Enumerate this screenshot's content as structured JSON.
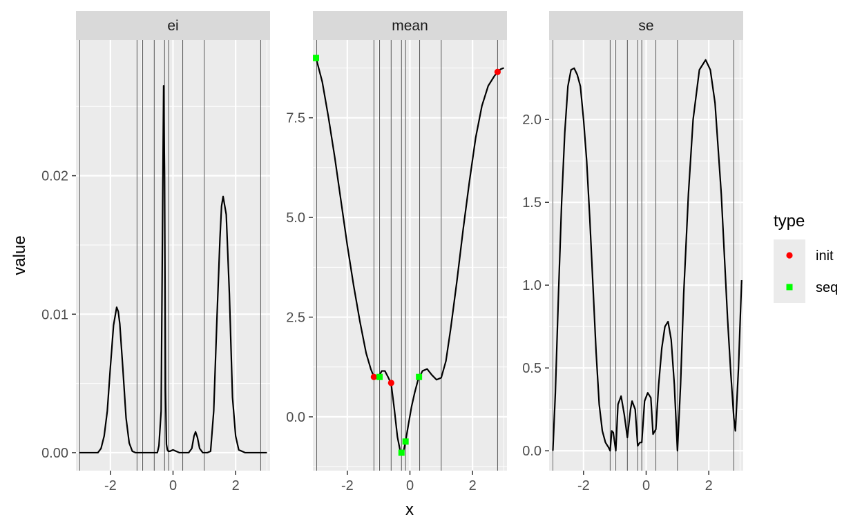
{
  "chart_data": {
    "type": "line",
    "xlabel": "x",
    "ylabel": "value",
    "facets": [
      {
        "name": "ei",
        "xlim": [
          -3.1,
          3.1
        ],
        "ylim": [
          -0.0013,
          0.0298
        ],
        "x_ticks": [
          -2,
          0,
          2
        ],
        "y_ticks": [
          0.0,
          0.01,
          0.02
        ],
        "y_tick_labels": [
          "0.00",
          "0.01",
          "0.02"
        ],
        "vlines": [
          -2.98,
          -1.15,
          -0.97,
          -0.6,
          -0.27,
          -0.14,
          0.31,
          1.0,
          2.8
        ],
        "curve": {
          "x": [
            -3.0,
            -2.4,
            -2.3,
            -2.2,
            -2.1,
            -2.0,
            -1.9,
            -1.8,
            -1.75,
            -1.7,
            -1.6,
            -1.5,
            -1.4,
            -1.3,
            -1.2,
            -1.0,
            -0.8,
            -0.5,
            -0.45,
            -0.38,
            -0.33,
            -0.3,
            -0.27,
            -0.24,
            -0.21,
            -0.18,
            -0.15,
            -0.1,
            0.0,
            0.2,
            0.5,
            0.6,
            0.67,
            0.72,
            0.78,
            0.85,
            0.95,
            1.1,
            1.2,
            1.3,
            1.4,
            1.5,
            1.55,
            1.6,
            1.7,
            1.8,
            1.9,
            2.0,
            2.1,
            2.3,
            2.6,
            3.0
          ],
          "y": [
            0,
            0,
            0.0003,
            0.0012,
            0.003,
            0.0062,
            0.0092,
            0.0105,
            0.0102,
            0.0093,
            0.006,
            0.0025,
            0.0007,
            0.0001,
            0,
            0,
            0,
            0,
            0.0005,
            0.003,
            0.018,
            0.0265,
            0.02,
            0.0045,
            0.0006,
            0.0002,
            0.0001,
            0.0001,
            0.0002,
            0,
            0,
            0.0003,
            0.0012,
            0.0015,
            0.0011,
            0.0003,
            0,
            0,
            0.0001,
            0.003,
            0.0095,
            0.0155,
            0.0178,
            0.0185,
            0.0172,
            0.0115,
            0.004,
            0.0012,
            0.0002,
            0,
            0,
            0
          ]
        }
      },
      {
        "name": "mean",
        "xlim": [
          -3.1,
          3.1
        ],
        "ylim": [
          -1.35,
          9.45
        ],
        "x_ticks": [
          -2,
          0,
          2
        ],
        "y_ticks": [
          0.0,
          2.5,
          5.0,
          7.5
        ],
        "y_tick_labels": [
          "0.0",
          "2.5",
          "5.0",
          "7.5"
        ],
        "vlines": [
          -2.98,
          -1.15,
          -0.97,
          -0.6,
          -0.27,
          -0.14,
          0.31,
          1.0,
          2.8
        ],
        "curve": {
          "x": [
            -3.0,
            -2.8,
            -2.6,
            -2.4,
            -2.2,
            -2.0,
            -1.8,
            -1.6,
            -1.4,
            -1.25,
            -1.15,
            -1.05,
            -0.97,
            -0.9,
            -0.8,
            -0.7,
            -0.6,
            -0.5,
            -0.4,
            -0.3,
            -0.25,
            -0.2,
            -0.14,
            -0.05,
            0.05,
            0.15,
            0.25,
            0.31,
            0.4,
            0.55,
            0.7,
            0.85,
            1.0,
            1.15,
            1.3,
            1.5,
            1.7,
            1.9,
            2.1,
            2.3,
            2.5,
            2.7,
            2.8,
            2.9,
            3.0
          ],
          "y": [
            9.0,
            8.4,
            7.5,
            6.5,
            5.4,
            4.3,
            3.3,
            2.4,
            1.6,
            1.2,
            1.0,
            1.0,
            1.05,
            1.15,
            1.15,
            1.0,
            0.83,
            0.2,
            -0.5,
            -0.9,
            -0.95,
            -0.85,
            -0.62,
            -0.2,
            0.25,
            0.6,
            0.9,
            1.0,
            1.15,
            1.2,
            1.05,
            0.93,
            0.98,
            1.4,
            2.2,
            3.4,
            4.7,
            5.9,
            7.0,
            7.8,
            8.3,
            8.55,
            8.65,
            8.72,
            8.75
          ]
        },
        "points": [
          {
            "x": -3.0,
            "y": 9.0,
            "type": "seq"
          },
          {
            "x": -1.15,
            "y": 1.0,
            "type": "init"
          },
          {
            "x": -0.97,
            "y": 1.0,
            "type": "seq"
          },
          {
            "x": -0.6,
            "y": 0.85,
            "type": "init"
          },
          {
            "x": -0.27,
            "y": -0.9,
            "type": "seq"
          },
          {
            "x": -0.14,
            "y": -0.62,
            "type": "seq"
          },
          {
            "x": 0.29,
            "y": 1.0,
            "type": "seq"
          },
          {
            "x": 2.8,
            "y": 8.65,
            "type": "init"
          }
        ]
      },
      {
        "name": "se",
        "xlim": [
          -3.1,
          3.1
        ],
        "ylim": [
          -0.12,
          2.48
        ],
        "x_ticks": [
          -2,
          0,
          2
        ],
        "y_ticks": [
          0.0,
          0.5,
          1.0,
          1.5,
          2.0
        ],
        "y_tick_labels": [
          "0.0",
          "0.5",
          "1.0",
          "1.5",
          "2.0"
        ],
        "vlines": [
          -2.98,
          -1.15,
          -0.97,
          -0.6,
          -0.27,
          -0.14,
          0.31,
          1.0,
          2.8
        ],
        "curve": {
          "x": [
            -2.98,
            -2.9,
            -2.8,
            -2.7,
            -2.6,
            -2.5,
            -2.4,
            -2.3,
            -2.2,
            -2.1,
            -2.0,
            -1.9,
            -1.8,
            -1.7,
            -1.6,
            -1.5,
            -1.4,
            -1.3,
            -1.2,
            -1.15,
            -1.1,
            -1.05,
            -0.97,
            -0.9,
            -0.8,
            -0.7,
            -0.6,
            -0.5,
            -0.45,
            -0.35,
            -0.27,
            -0.2,
            -0.14,
            -0.05,
            0.05,
            0.15,
            0.22,
            0.31,
            0.4,
            0.5,
            0.6,
            0.7,
            0.8,
            0.9,
            1.0,
            1.1,
            1.2,
            1.35,
            1.5,
            1.7,
            1.9,
            2.05,
            2.2,
            2.4,
            2.6,
            2.7,
            2.8,
            2.85,
            2.95,
            3.05
          ],
          "y": [
            0.0,
            0.35,
            0.95,
            1.5,
            1.92,
            2.2,
            2.3,
            2.31,
            2.27,
            2.2,
            2.0,
            1.75,
            1.4,
            1.0,
            0.6,
            0.28,
            0.12,
            0.05,
            0.02,
            0.0,
            0.12,
            0.11,
            0.0,
            0.28,
            0.33,
            0.22,
            0.08,
            0.25,
            0.3,
            0.25,
            0.03,
            0.05,
            0.05,
            0.3,
            0.35,
            0.32,
            0.1,
            0.13,
            0.4,
            0.62,
            0.75,
            0.78,
            0.67,
            0.4,
            0.0,
            0.4,
            0.95,
            1.55,
            2.0,
            2.3,
            2.36,
            2.3,
            2.1,
            1.55,
            0.8,
            0.48,
            0.2,
            0.12,
            0.5,
            1.03
          ]
        }
      }
    ],
    "legend": {
      "title": "type",
      "position": "right",
      "entries": [
        {
          "label": "init",
          "shape": "circle",
          "color": "#ff0000"
        },
        {
          "label": "seq",
          "shape": "square",
          "color": "#00ff00"
        }
      ]
    }
  },
  "colors": {
    "panel_background": "#ebebeb",
    "strip_background": "#d9d9d9",
    "grid_major": "#ffffff",
    "vline": "#555555",
    "curve": "#000000",
    "init": "#ff0000",
    "seq": "#00ff00"
  }
}
